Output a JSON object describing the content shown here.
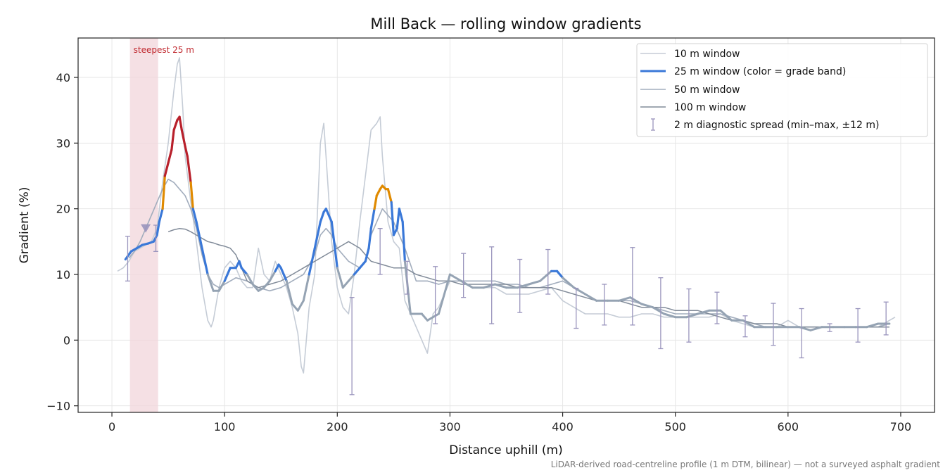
{
  "chart_data": {
    "type": "line",
    "title": "Mill Back — rolling window gradients",
    "xlabel": "Distance uphill (m)",
    "ylabel": "Gradient (%)",
    "xlim": [
      -30,
      730
    ],
    "ylim": [
      -11,
      46
    ],
    "x_ticks": [
      0,
      100,
      200,
      300,
      400,
      500,
      600,
      700
    ],
    "y_ticks": [
      -10,
      0,
      10,
      20,
      30,
      40
    ],
    "grid": true,
    "legend_position": "top-right",
    "footnote": "LiDAR-derived road-centreline profile (1 m DTM, bilinear) — not a surveyed asphalt gradient",
    "annotation": {
      "label": "steepest 25 m",
      "span": [
        16,
        41
      ],
      "marker": {
        "x": 30,
        "y": 17
      }
    },
    "colors": {
      "w10": "#c5ccd6",
      "w25": "#3a78d8",
      "w25_gray": "#95a3b3",
      "w50": "#a2adbd",
      "w100": "#818b99",
      "steep": "#b8202b",
      "moderate": "#e08a00",
      "spread": "#9a95bd",
      "highlight": "#f2d6db"
    },
    "series": [
      {
        "key": "w10",
        "name": "10 m window",
        "x": [
          5,
          10,
          15,
          20,
          25,
          30,
          35,
          40,
          45,
          50,
          55,
          58,
          60,
          63,
          65,
          70,
          75,
          80,
          85,
          88,
          90,
          95,
          100,
          105,
          110,
          115,
          120,
          125,
          130,
          135,
          140,
          145,
          150,
          155,
          160,
          165,
          168,
          170,
          175,
          180,
          185,
          188,
          190,
          195,
          200,
          205,
          210,
          215,
          220,
          225,
          230,
          235,
          238,
          240,
          243,
          245,
          250,
          255,
          260,
          265,
          270,
          275,
          280,
          285,
          290,
          295,
          300,
          310,
          320,
          330,
          340,
          350,
          360,
          370,
          380,
          390,
          400,
          410,
          420,
          430,
          440,
          450,
          460,
          470,
          480,
          490,
          500,
          510,
          520,
          530,
          540,
          550,
          560,
          570,
          580,
          590,
          600,
          610,
          620,
          630,
          640,
          650,
          660,
          670,
          680,
          690,
          695
        ],
        "values": [
          10.5,
          11,
          12,
          13.5,
          14,
          14.5,
          15,
          17,
          24,
          30,
          38,
          42,
          43,
          35,
          28,
          21,
          15,
          8,
          3,
          2,
          3,
          8,
          11,
          12,
          11,
          9,
          8,
          8,
          14,
          10,
          9,
          12,
          10,
          8,
          5,
          1,
          -4,
          -5,
          5,
          10,
          30,
          33,
          28,
          15,
          8,
          5,
          4,
          10,
          18,
          25,
          32,
          33,
          34,
          28,
          22,
          18,
          15,
          14,
          6,
          4,
          2,
          0,
          -2,
          4,
          5,
          7,
          9,
          9,
          8,
          8,
          8,
          7,
          7,
          7,
          7.5,
          8,
          6,
          5,
          4,
          4,
          4,
          3.5,
          3.5,
          4,
          4,
          3.5,
          3.5,
          3.5,
          3.5,
          3.5,
          4,
          3,
          2.5,
          2,
          2,
          2,
          3,
          2,
          2,
          2,
          2,
          2,
          2,
          2,
          2,
          3,
          3.5
        ]
      },
      {
        "key": "w25",
        "name": "25 m window (color = grade band)",
        "x": [
          12,
          17,
          22,
          27,
          32,
          37,
          40,
          42,
          45,
          47,
          50,
          53,
          55,
          58,
          60,
          62,
          65,
          67,
          70,
          72,
          75,
          80,
          85,
          90,
          95,
          100,
          105,
          110,
          113,
          115,
          120,
          125,
          130,
          135,
          140,
          145,
          148,
          150,
          155,
          160,
          165,
          170,
          175,
          180,
          185,
          188,
          190,
          195,
          200,
          205,
          210,
          215,
          220,
          225,
          228,
          230,
          233,
          235,
          238,
          240,
          243,
          245,
          248,
          250,
          253,
          255,
          258,
          260,
          265,
          270,
          275,
          280,
          290,
          300,
          310,
          320,
          330,
          340,
          350,
          360,
          370,
          380,
          390,
          395,
          400,
          410,
          420,
          430,
          440,
          450,
          460,
          470,
          480,
          490,
          500,
          510,
          520,
          530,
          540,
          550,
          560,
          570,
          580,
          590,
          600,
          610,
          620,
          630,
          640,
          650,
          660,
          670,
          680,
          690
        ],
        "values": [
          12.3,
          13.5,
          14,
          14.5,
          14.7,
          15,
          16,
          18,
          20,
          25,
          27,
          29,
          32,
          33.5,
          34,
          32,
          29.5,
          28,
          24,
          20,
          18,
          14,
          10,
          7.5,
          7.5,
          9,
          11,
          11,
          12,
          11,
          10,
          8.5,
          7.5,
          8,
          9,
          10.5,
          11.5,
          11,
          9,
          5.5,
          4.5,
          6,
          10,
          14,
          18,
          19.5,
          20,
          18,
          11,
          8,
          9,
          10,
          11,
          12,
          14,
          17,
          20,
          22,
          23,
          23.5,
          23,
          23,
          21,
          16,
          17,
          20,
          18,
          12,
          4,
          4,
          4,
          3,
          4,
          10,
          9,
          8,
          8,
          8.5,
          8,
          8,
          8.5,
          9,
          10.5,
          10.5,
          9.5,
          8,
          7,
          6,
          6,
          6,
          6.5,
          5.5,
          5,
          4,
          3.5,
          3.5,
          4,
          4.5,
          4.5,
          3,
          3,
          2,
          2,
          2,
          2,
          2,
          1.5,
          2,
          2,
          2,
          2,
          2,
          2.5,
          2.5
        ]
      },
      {
        "key": "w50",
        "name": "50 m window",
        "x": [
          15,
          20,
          25,
          30,
          35,
          40,
          45,
          50,
          55,
          60,
          65,
          70,
          75,
          80,
          85,
          90,
          95,
          100,
          110,
          120,
          130,
          140,
          150,
          160,
          170,
          180,
          185,
          190,
          195,
          200,
          205,
          210,
          220,
          225,
          230,
          240,
          250,
          260,
          270,
          280,
          290,
          300,
          310,
          320,
          330,
          340,
          350,
          360,
          370,
          380,
          390,
          400,
          410,
          420,
          430,
          440,
          450,
          460,
          470,
          480,
          490,
          500,
          510,
          520,
          530,
          540,
          550,
          560,
          570,
          580,
          590,
          600,
          610,
          620,
          630,
          640,
          650,
          660,
          670,
          680,
          690
        ],
        "values": [
          12.5,
          13.5,
          15,
          17,
          19,
          21,
          23,
          24.5,
          24,
          23,
          22,
          20,
          17,
          13,
          10,
          8.5,
          8,
          8.5,
          9.5,
          9,
          8,
          7.5,
          8,
          9,
          10,
          13,
          16,
          17,
          16,
          14,
          13,
          12,
          11,
          12,
          16,
          20,
          18,
          14,
          9,
          9,
          8.5,
          9,
          9,
          9,
          9,
          9,
          8.5,
          8.5,
          8,
          8,
          8.5,
          9,
          8,
          7,
          6,
          6,
          6,
          6,
          5.5,
          5,
          4.5,
          4,
          4,
          4,
          4,
          4,
          3.5,
          3,
          2.5,
          2,
          2,
          2,
          2,
          2,
          2,
          2,
          2,
          2,
          2,
          2,
          2.5
        ]
      },
      {
        "key": "w100",
        "name": "100 m window",
        "x": [
          50,
          55,
          60,
          65,
          70,
          75,
          80,
          85,
          90,
          95,
          100,
          105,
          110,
          115,
          120,
          125,
          130,
          140,
          150,
          160,
          170,
          180,
          190,
          200,
          205,
          210,
          215,
          220,
          225,
          230,
          240,
          250,
          260,
          270,
          280,
          290,
          300,
          310,
          320,
          330,
          340,
          350,
          360,
          370,
          380,
          390,
          400,
          410,
          420,
          430,
          440,
          450,
          460,
          470,
          480,
          490,
          500,
          510,
          520,
          530,
          540,
          550,
          560,
          570,
          580,
          590,
          600,
          610,
          620,
          630,
          640,
          650,
          660,
          670,
          680,
          690
        ],
        "values": [
          16.5,
          16.8,
          17,
          16.9,
          16.5,
          16,
          15.5,
          15,
          14.8,
          14.5,
          14.3,
          14,
          13,
          11,
          9,
          8.5,
          8,
          8.5,
          9,
          10,
          11,
          12,
          13,
          14,
          14.5,
          15,
          14.5,
          14,
          13,
          12,
          11.5,
          11,
          11,
          10,
          9.5,
          9,
          9,
          8.5,
          8.5,
          8.5,
          8.5,
          8.5,
          8,
          8,
          8,
          8,
          7.5,
          7,
          6.5,
          6,
          6,
          6,
          5.5,
          5,
          5,
          5,
          4.5,
          4.5,
          4.5,
          4,
          3.5,
          3,
          3,
          2.5,
          2.5,
          2.5,
          2,
          2,
          2,
          2,
          2,
          2,
          2,
          2,
          2,
          2
        ]
      },
      {
        "key": "spread",
        "name": "2 m diagnostic spread (min–max, ±12 m)",
        "x": [
          14,
          39,
          213,
          238,
          262,
          287,
          312,
          337,
          362,
          387,
          412,
          437,
          462,
          487,
          512,
          537,
          562,
          587,
          612,
          637,
          662,
          687
        ],
        "values": [
          12.5,
          16,
          0,
          14,
          9,
          7,
          10,
          8,
          8,
          10,
          5,
          5,
          8,
          4,
          4,
          5,
          2.5,
          2,
          1.5,
          1.8,
          2,
          3
        ],
        "min": [
          9,
          13.5,
          -8.3,
          10,
          7,
          2.5,
          6.5,
          2.5,
          4.2,
          7,
          1.8,
          2.3,
          2.3,
          -1.3,
          -0.3,
          2.5,
          0.5,
          -0.8,
          -2.7,
          1.3,
          -0.3,
          0.8
        ],
        "max": [
          15.8,
          17.5,
          6.5,
          17,
          12,
          11.2,
          13.2,
          14.2,
          12.3,
          13.8,
          7.9,
          8.5,
          14.1,
          9.5,
          7.8,
          7.3,
          3.7,
          5.6,
          4.8,
          2.5,
          4.8,
          5.8
        ]
      }
    ]
  }
}
